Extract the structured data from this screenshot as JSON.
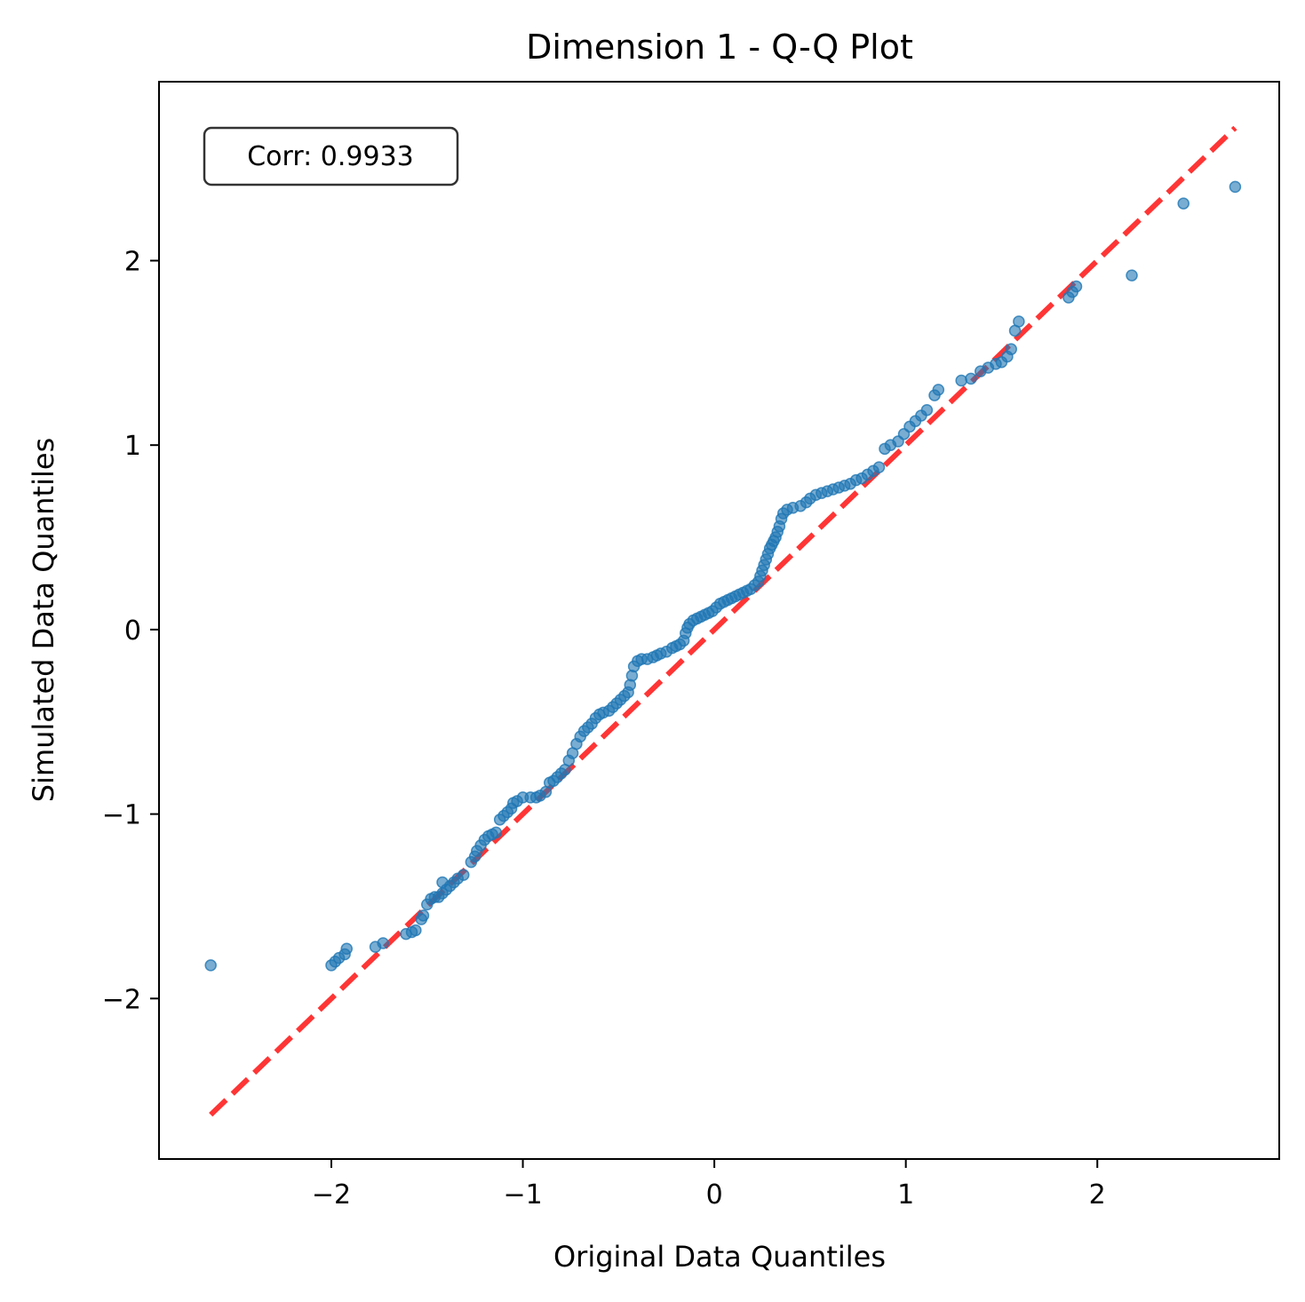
{
  "chart_data": {
    "type": "scatter",
    "title": "Dimension 1 - Q-Q Plot",
    "xlabel": "Original Data Quantiles",
    "ylabel": "Simulated Data Quantiles",
    "xlim": [
      -2.9,
      2.95
    ],
    "ylim": [
      -2.87,
      2.97
    ],
    "x_ticks": [
      -2,
      -1,
      0,
      1,
      2
    ],
    "x_tick_labels": [
      "−2",
      "−1",
      "0",
      "1",
      "2"
    ],
    "y_ticks": [
      -2,
      -1,
      0,
      1,
      2
    ],
    "y_tick_labels": [
      "−2",
      "−1",
      "0",
      "1",
      "2"
    ],
    "grid": false,
    "annotation": "Corr: 0.9933",
    "reference_line": {
      "style": "dashed",
      "color": "#ff2a2a",
      "from": [
        -2.63,
        -2.63
      ],
      "to": [
        2.72,
        2.72
      ]
    },
    "series": [
      {
        "color": "#1f77b4",
        "points": [
          [
            -2.63,
            -1.82
          ],
          [
            -2.0,
            -1.82
          ],
          [
            -1.98,
            -1.8
          ],
          [
            -1.96,
            -1.78
          ],
          [
            -1.93,
            -1.76
          ],
          [
            -1.92,
            -1.73
          ],
          [
            -1.77,
            -1.72
          ],
          [
            -1.73,
            -1.7
          ],
          [
            -1.61,
            -1.65
          ],
          [
            -1.58,
            -1.64
          ],
          [
            -1.56,
            -1.63
          ],
          [
            -1.53,
            -1.57
          ],
          [
            -1.52,
            -1.55
          ],
          [
            -1.5,
            -1.49
          ],
          [
            -1.48,
            -1.46
          ],
          [
            -1.46,
            -1.45
          ],
          [
            -1.44,
            -1.45
          ],
          [
            -1.42,
            -1.43
          ],
          [
            -1.4,
            -1.41
          ],
          [
            -1.42,
            -1.37
          ],
          [
            -1.38,
            -1.39
          ],
          [
            -1.36,
            -1.37
          ],
          [
            -1.34,
            -1.35
          ],
          [
            -1.31,
            -1.33
          ],
          [
            -1.27,
            -1.26
          ],
          [
            -1.25,
            -1.23
          ],
          [
            -1.24,
            -1.2
          ],
          [
            -1.22,
            -1.17
          ],
          [
            -1.2,
            -1.14
          ],
          [
            -1.18,
            -1.12
          ],
          [
            -1.16,
            -1.11
          ],
          [
            -1.14,
            -1.1
          ],
          [
            -1.12,
            -1.03
          ],
          [
            -1.1,
            -1.01
          ],
          [
            -1.08,
            -0.99
          ],
          [
            -1.06,
            -0.97
          ],
          [
            -1.05,
            -0.94
          ],
          [
            -1.03,
            -0.93
          ],
          [
            -1.0,
            -0.91
          ],
          [
            -0.96,
            -0.91
          ],
          [
            -0.93,
            -0.91
          ],
          [
            -0.91,
            -0.9
          ],
          [
            -0.88,
            -0.88
          ],
          [
            -0.86,
            -0.83
          ],
          [
            -0.84,
            -0.82
          ],
          [
            -0.82,
            -0.8
          ],
          [
            -0.8,
            -0.78
          ],
          [
            -0.78,
            -0.76
          ],
          [
            -0.76,
            -0.71
          ],
          [
            -0.74,
            -0.67
          ],
          [
            -0.72,
            -0.62
          ],
          [
            -0.7,
            -0.58
          ],
          [
            -0.68,
            -0.55
          ],
          [
            -0.66,
            -0.53
          ],
          [
            -0.64,
            -0.51
          ],
          [
            -0.62,
            -0.48
          ],
          [
            -0.6,
            -0.46
          ],
          [
            -0.58,
            -0.45
          ],
          [
            -0.55,
            -0.44
          ],
          [
            -0.53,
            -0.42
          ],
          [
            -0.51,
            -0.4
          ],
          [
            -0.49,
            -0.38
          ],
          [
            -0.47,
            -0.36
          ],
          [
            -0.45,
            -0.34
          ],
          [
            -0.44,
            -0.3
          ],
          [
            -0.43,
            -0.25
          ],
          [
            -0.42,
            -0.2
          ],
          [
            -0.4,
            -0.17
          ],
          [
            -0.38,
            -0.16
          ],
          [
            -0.35,
            -0.16
          ],
          [
            -0.32,
            -0.15
          ],
          [
            -0.3,
            -0.14
          ],
          [
            -0.28,
            -0.13
          ],
          [
            -0.25,
            -0.12
          ],
          [
            -0.22,
            -0.1
          ],
          [
            -0.2,
            -0.09
          ],
          [
            -0.18,
            -0.08
          ],
          [
            -0.16,
            -0.06
          ],
          [
            -0.15,
            -0.02
          ],
          [
            -0.14,
            0.01
          ],
          [
            -0.13,
            0.03
          ],
          [
            -0.11,
            0.05
          ],
          [
            -0.09,
            0.06
          ],
          [
            -0.07,
            0.07
          ],
          [
            -0.05,
            0.08
          ],
          [
            -0.03,
            0.09
          ],
          [
            -0.01,
            0.1
          ],
          [
            0.01,
            0.12
          ],
          [
            0.03,
            0.14
          ],
          [
            0.05,
            0.15
          ],
          [
            0.07,
            0.16
          ],
          [
            0.09,
            0.17
          ],
          [
            0.11,
            0.18
          ],
          [
            0.13,
            0.19
          ],
          [
            0.15,
            0.2
          ],
          [
            0.17,
            0.21
          ],
          [
            0.19,
            0.22
          ],
          [
            0.21,
            0.24
          ],
          [
            0.23,
            0.26
          ],
          [
            0.24,
            0.29
          ],
          [
            0.25,
            0.32
          ],
          [
            0.26,
            0.35
          ],
          [
            0.27,
            0.38
          ],
          [
            0.28,
            0.41
          ],
          [
            0.29,
            0.44
          ],
          [
            0.3,
            0.46
          ],
          [
            0.31,
            0.48
          ],
          [
            0.32,
            0.5
          ],
          [
            0.33,
            0.53
          ],
          [
            0.34,
            0.56
          ],
          [
            0.35,
            0.6
          ],
          [
            0.36,
            0.63
          ],
          [
            0.38,
            0.65
          ],
          [
            0.41,
            0.66
          ],
          [
            0.45,
            0.67
          ],
          [
            0.48,
            0.69
          ],
          [
            0.5,
            0.71
          ],
          [
            0.53,
            0.73
          ],
          [
            0.56,
            0.74
          ],
          [
            0.59,
            0.75
          ],
          [
            0.62,
            0.76
          ],
          [
            0.65,
            0.77
          ],
          [
            0.68,
            0.78
          ],
          [
            0.71,
            0.79
          ],
          [
            0.74,
            0.81
          ],
          [
            0.77,
            0.82
          ],
          [
            0.8,
            0.84
          ],
          [
            0.83,
            0.86
          ],
          [
            0.86,
            0.88
          ],
          [
            0.89,
            0.98
          ],
          [
            0.92,
            1.0
          ],
          [
            0.96,
            1.02
          ],
          [
            0.99,
            1.06
          ],
          [
            1.02,
            1.1
          ],
          [
            1.05,
            1.13
          ],
          [
            1.08,
            1.16
          ],
          [
            1.11,
            1.19
          ],
          [
            1.15,
            1.27
          ],
          [
            1.17,
            1.3
          ],
          [
            1.29,
            1.35
          ],
          [
            1.34,
            1.36
          ],
          [
            1.39,
            1.4
          ],
          [
            1.43,
            1.42
          ],
          [
            1.47,
            1.44
          ],
          [
            1.5,
            1.45
          ],
          [
            1.53,
            1.48
          ],
          [
            1.55,
            1.52
          ],
          [
            1.57,
            1.62
          ],
          [
            1.59,
            1.67
          ],
          [
            1.85,
            1.8
          ],
          [
            1.87,
            1.83
          ],
          [
            1.89,
            1.86
          ],
          [
            2.18,
            1.92
          ],
          [
            2.45,
            2.31
          ],
          [
            2.72,
            2.4
          ]
        ]
      }
    ]
  }
}
